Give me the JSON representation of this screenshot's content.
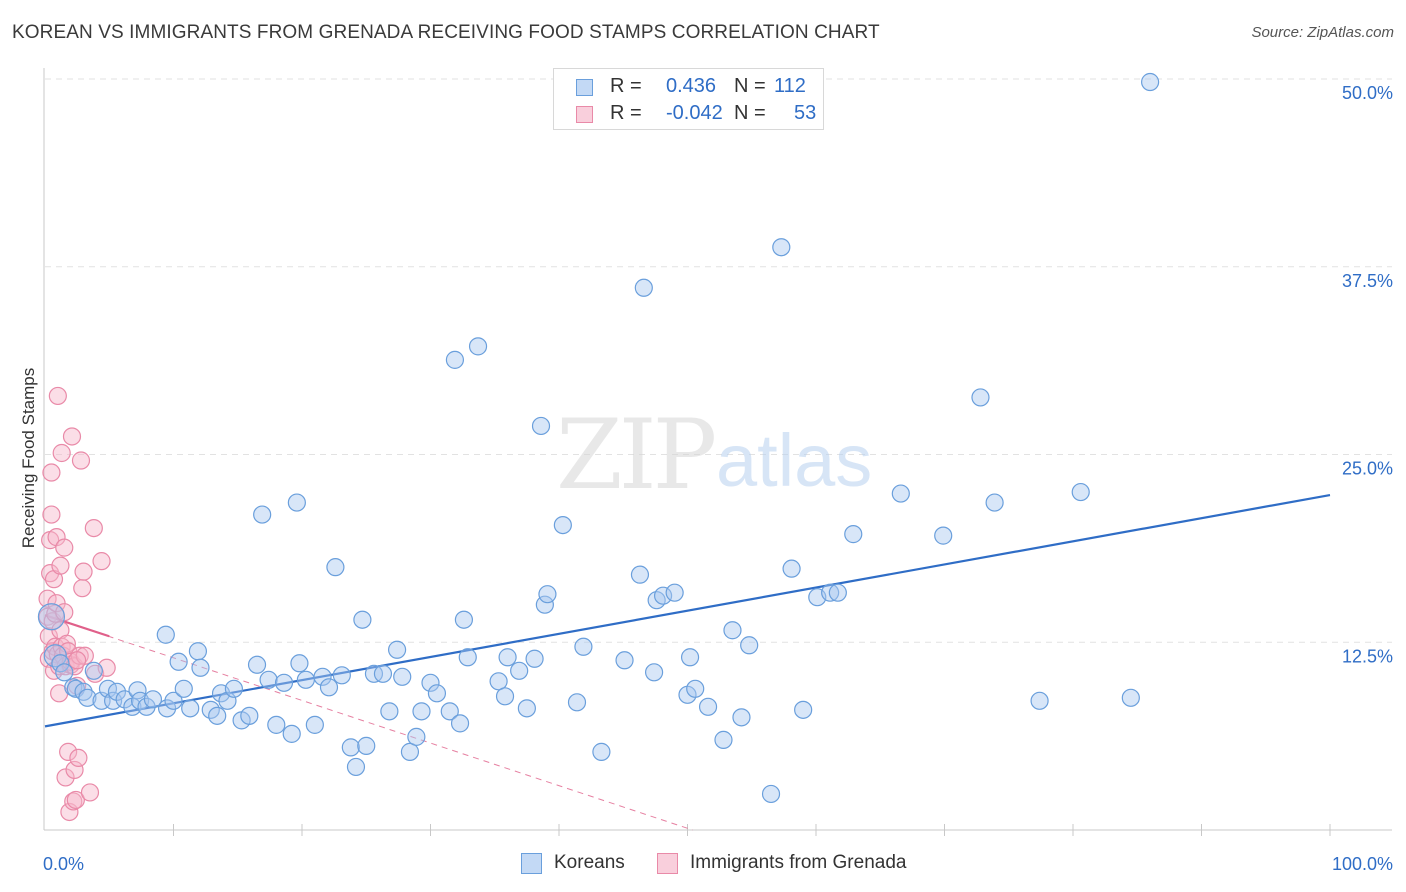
{
  "title": "KOREAN VS IMMIGRANTS FROM GRENADA RECEIVING FOOD STAMPS CORRELATION CHART",
  "source": "Source: ZipAtlas.com",
  "watermark": {
    "zip": "ZIP",
    "atlas": "atlas"
  },
  "colors": {
    "blue_fill": "#a9c8f0",
    "blue_stroke": "#6a9fdc",
    "blue_line": "#2f6dc6",
    "pink_fill": "#f6b6c9",
    "pink_stroke": "#e98aa8",
    "pink_line": "#e0608a",
    "value_text": "#2f6dc6",
    "grid": "#e2e2e2"
  },
  "legend": {
    "rows": [
      {
        "label": "R =",
        "r_value": "0.436",
        "n_label": "N =",
        "n_value": "112"
      },
      {
        "label": "R =",
        "r_value": "-0.042",
        "n_label": "N =",
        "n_value": "53"
      }
    ]
  },
  "bottom_legend": [
    {
      "label": "Koreans"
    },
    {
      "label": "Immigrants from Grenada"
    }
  ],
  "chart_data": {
    "type": "scatter",
    "ylabel": "Receiving Food Stamps",
    "xlabel": "",
    "xlim": [
      0,
      100
    ],
    "ylim": [
      0,
      50
    ],
    "x_tick_labels": [
      "0.0%",
      "100.0%"
    ],
    "y_tick_labels": [
      "12.5%",
      "25.0%",
      "37.5%",
      "50.0%"
    ],
    "y_ticks": [
      12.5,
      25,
      37.5,
      50
    ],
    "series": [
      {
        "name": "Koreans",
        "color": "#6a9fdc",
        "r": 0.436,
        "n": 112,
        "trend": {
          "x": [
            0,
            100
          ],
          "y": [
            6.9,
            22.3
          ]
        },
        "points": [
          [
            0.5,
            14.2
          ],
          [
            0.8,
            11.6
          ],
          [
            1.2,
            11.1
          ],
          [
            1.5,
            10.5
          ],
          [
            2.2,
            9.5
          ],
          [
            2.4,
            9.4
          ],
          [
            3.0,
            9.2
          ],
          [
            3.3,
            8.8
          ],
          [
            3.8,
            10.6
          ],
          [
            4.4,
            8.6
          ],
          [
            4.9,
            9.4
          ],
          [
            5.3,
            8.6
          ],
          [
            5.6,
            9.2
          ],
          [
            6.2,
            8.7
          ],
          [
            6.8,
            8.2
          ],
          [
            7.2,
            9.3
          ],
          [
            7.4,
            8.6
          ],
          [
            7.9,
            8.2
          ],
          [
            8.4,
            8.7
          ],
          [
            9.4,
            13.0
          ],
          [
            9.5,
            8.1
          ],
          [
            10.0,
            8.6
          ],
          [
            10.4,
            11.2
          ],
          [
            10.8,
            9.4
          ],
          [
            11.3,
            8.1
          ],
          [
            11.9,
            11.9
          ],
          [
            12.1,
            10.8
          ],
          [
            12.9,
            8.0
          ],
          [
            13.4,
            7.6
          ],
          [
            13.7,
            9.1
          ],
          [
            14.2,
            8.6
          ],
          [
            14.7,
            9.4
          ],
          [
            15.3,
            7.3
          ],
          [
            15.9,
            7.6
          ],
          [
            16.5,
            11.0
          ],
          [
            16.9,
            21.0
          ],
          [
            17.4,
            10.0
          ],
          [
            18.0,
            7.0
          ],
          [
            18.6,
            9.8
          ],
          [
            19.2,
            6.4
          ],
          [
            19.6,
            21.8
          ],
          [
            19.8,
            11.1
          ],
          [
            20.3,
            10.0
          ],
          [
            21.0,
            7.0
          ],
          [
            21.6,
            10.2
          ],
          [
            22.1,
            9.5
          ],
          [
            22.6,
            17.5
          ],
          [
            23.1,
            10.3
          ],
          [
            23.8,
            5.5
          ],
          [
            24.2,
            4.2
          ],
          [
            24.7,
            14.0
          ],
          [
            25.0,
            5.6
          ],
          [
            25.6,
            10.4
          ],
          [
            26.3,
            10.4
          ],
          [
            26.8,
            7.9
          ],
          [
            27.4,
            12.0
          ],
          [
            27.8,
            10.2
          ],
          [
            28.4,
            5.2
          ],
          [
            28.9,
            6.2
          ],
          [
            29.3,
            7.9
          ],
          [
            30.0,
            9.8
          ],
          [
            30.5,
            9.1
          ],
          [
            31.5,
            7.9
          ],
          [
            31.9,
            31.3
          ],
          [
            32.3,
            7.1
          ],
          [
            32.6,
            14.0
          ],
          [
            32.9,
            11.5
          ],
          [
            33.7,
            32.2
          ],
          [
            35.3,
            9.9
          ],
          [
            35.8,
            8.9
          ],
          [
            36.0,
            11.5
          ],
          [
            36.9,
            10.6
          ],
          [
            37.5,
            8.1
          ],
          [
            38.1,
            11.4
          ],
          [
            38.6,
            26.9
          ],
          [
            38.9,
            15.0
          ],
          [
            39.1,
            15.7
          ],
          [
            40.3,
            20.3
          ],
          [
            41.4,
            8.5
          ],
          [
            41.9,
            12.2
          ],
          [
            43.3,
            5.2
          ],
          [
            45.1,
            11.3
          ],
          [
            46.3,
            17.0
          ],
          [
            46.6,
            36.1
          ],
          [
            47.4,
            10.5
          ],
          [
            47.6,
            15.3
          ],
          [
            48.1,
            15.6
          ],
          [
            49.0,
            15.8
          ],
          [
            50.0,
            9.0
          ],
          [
            50.2,
            11.5
          ],
          [
            50.6,
            9.4
          ],
          [
            51.6,
            8.2
          ],
          [
            52.8,
            6.0
          ],
          [
            53.5,
            13.3
          ],
          [
            54.2,
            7.5
          ],
          [
            54.8,
            12.3
          ],
          [
            56.5,
            2.4
          ],
          [
            57.3,
            38.8
          ],
          [
            58.1,
            17.4
          ],
          [
            59.0,
            8.0
          ],
          [
            60.1,
            15.5
          ],
          [
            61.1,
            15.8
          ],
          [
            61.7,
            15.8
          ],
          [
            62.9,
            19.7
          ],
          [
            66.6,
            22.4
          ],
          [
            69.9,
            19.6
          ],
          [
            72.8,
            28.8
          ],
          [
            73.9,
            21.8
          ],
          [
            77.4,
            8.6
          ],
          [
            80.6,
            22.5
          ],
          [
            84.5,
            8.8
          ],
          [
            86.0,
            49.8
          ]
        ]
      },
      {
        "name": "Immigrants from Grenada",
        "color": "#e98aa8",
        "r": -0.042,
        "n": 53,
        "trend": {
          "x": [
            0,
            5
          ],
          "y": [
            14.3,
            12.9
          ]
        },
        "trend_extended": {
          "x": [
            0,
            50.4
          ],
          "y": [
            14.3,
            0
          ]
        },
        "points": [
          [
            0.2,
            15.4
          ],
          [
            0.2,
            14.2
          ],
          [
            0.3,
            12.9
          ],
          [
            0.3,
            11.4
          ],
          [
            0.4,
            19.3
          ],
          [
            0.4,
            17.1
          ],
          [
            0.5,
            21.0
          ],
          [
            0.5,
            23.8
          ],
          [
            0.6,
            13.9
          ],
          [
            0.6,
            11.9
          ],
          [
            0.7,
            10.6
          ],
          [
            0.7,
            16.7
          ],
          [
            0.8,
            14.4
          ],
          [
            0.8,
            12.2
          ],
          [
            0.9,
            19.5
          ],
          [
            0.9,
            15.1
          ],
          [
            1.0,
            11.7
          ],
          [
            1.0,
            28.9
          ],
          [
            1.1,
            10.9
          ],
          [
            1.2,
            13.3
          ],
          [
            1.2,
            17.6
          ],
          [
            1.3,
            12.2
          ],
          [
            1.3,
            25.1
          ],
          [
            1.4,
            11.6
          ],
          [
            1.5,
            18.8
          ],
          [
            1.5,
            14.5
          ],
          [
            1.6,
            10.9
          ],
          [
            1.6,
            3.5
          ],
          [
            1.7,
            12.4
          ],
          [
            1.8,
            11.9
          ],
          [
            1.8,
            5.2
          ],
          [
            1.9,
            1.2
          ],
          [
            2.0,
            11.0
          ],
          [
            2.0,
            11.2
          ],
          [
            2.1,
            26.2
          ],
          [
            2.2,
            1.9
          ],
          [
            2.3,
            10.9
          ],
          [
            2.3,
            4.0
          ],
          [
            2.4,
            2.0
          ],
          [
            2.5,
            9.6
          ],
          [
            2.6,
            4.8
          ],
          [
            2.7,
            11.6
          ],
          [
            2.8,
            24.6
          ],
          [
            2.9,
            16.1
          ],
          [
            3.0,
            17.2
          ],
          [
            3.1,
            11.6
          ],
          [
            3.5,
            2.5
          ],
          [
            3.8,
            20.1
          ],
          [
            3.9,
            10.4
          ],
          [
            4.4,
            17.9
          ],
          [
            4.8,
            10.8
          ],
          [
            1.1,
            9.1
          ],
          [
            2.5,
            11.3
          ]
        ]
      }
    ]
  }
}
